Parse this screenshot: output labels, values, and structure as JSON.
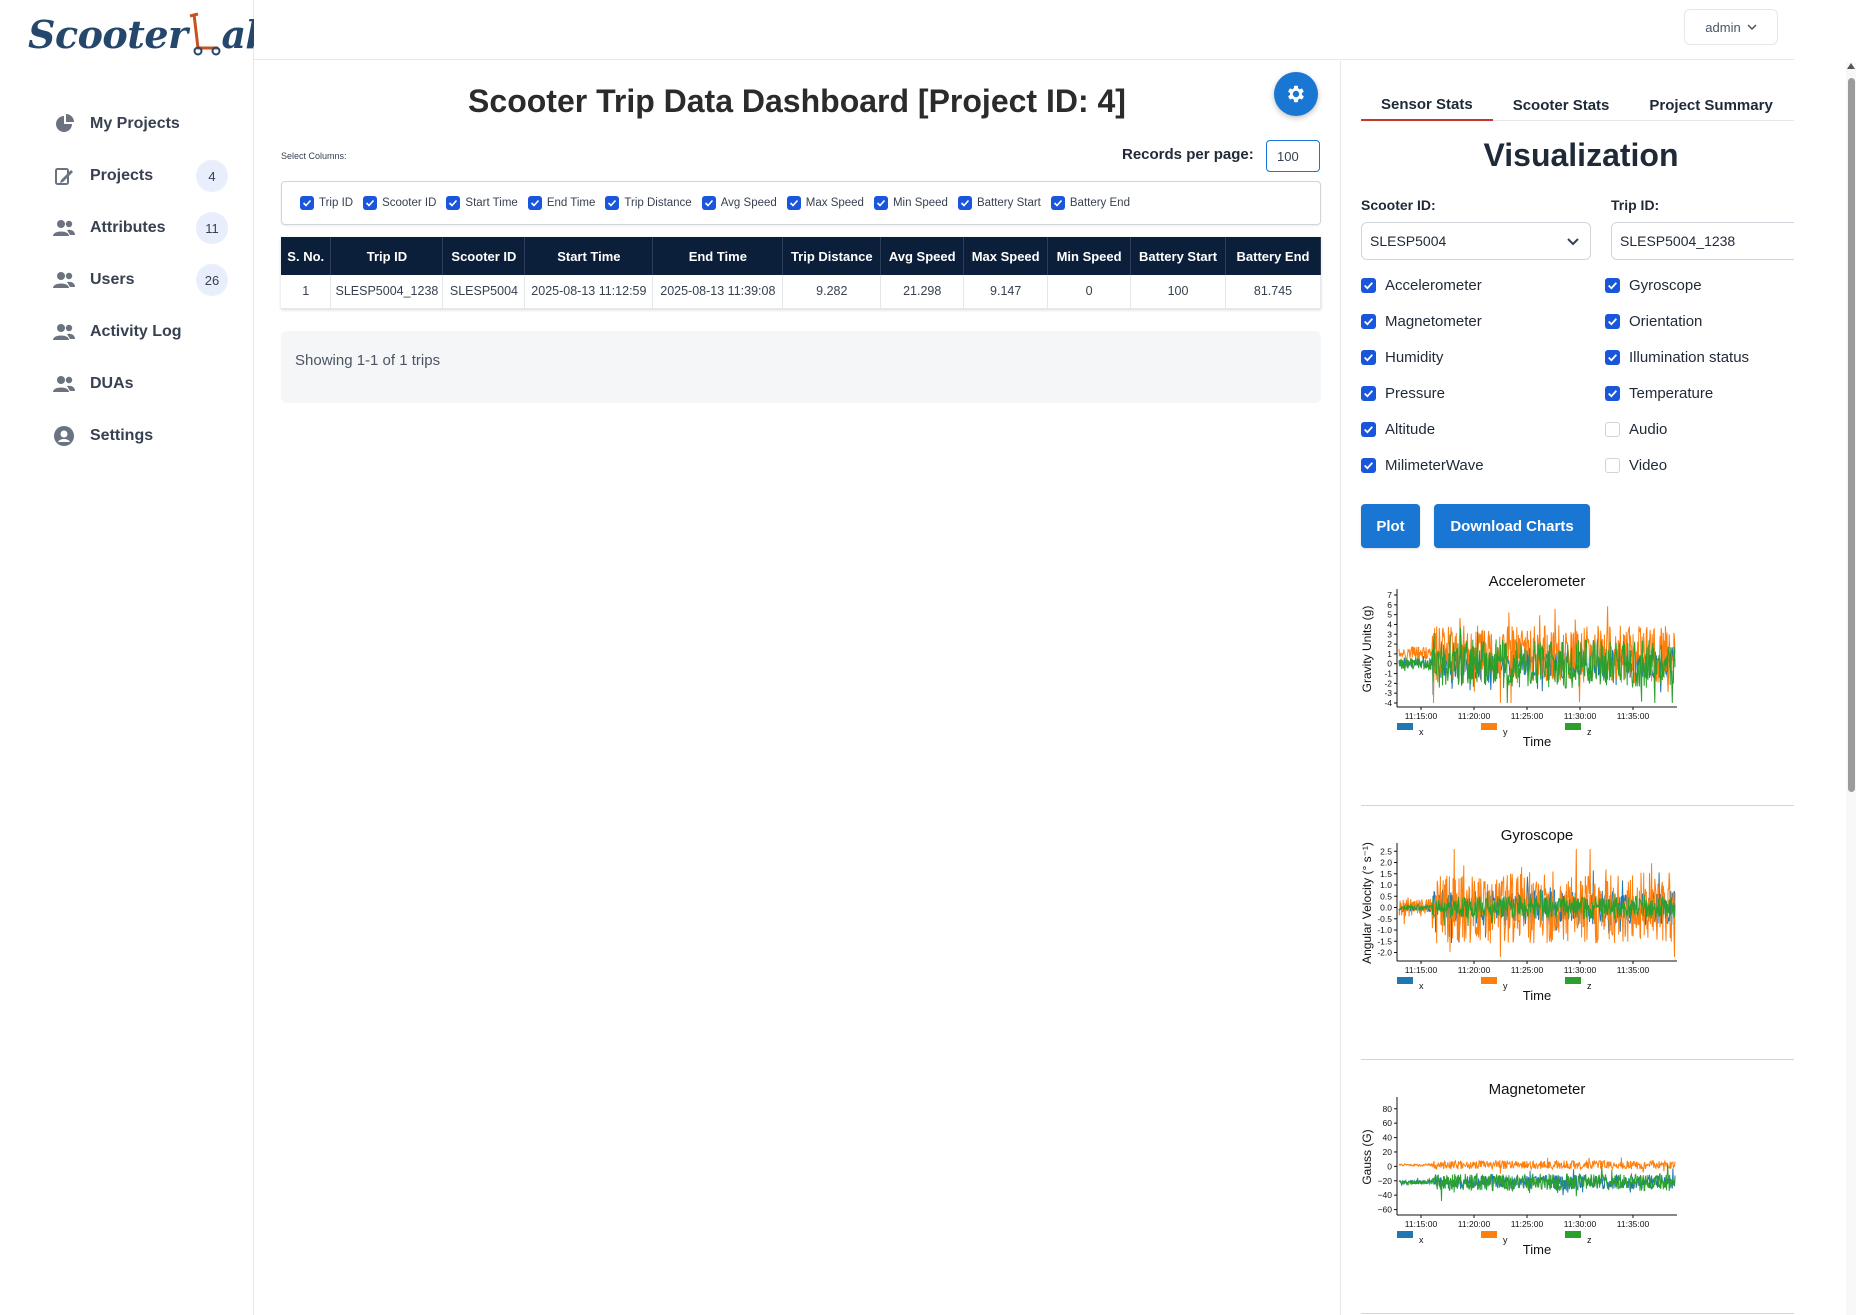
{
  "app": {
    "logo_left": "Scooter",
    "logo_right": "ab"
  },
  "sidebar": {
    "items": [
      {
        "label": "My Projects",
        "icon": "pie-chart-icon",
        "badge": null
      },
      {
        "label": "Projects",
        "icon": "edit-document-icon",
        "badge": "4"
      },
      {
        "label": "Attributes",
        "icon": "users-icon",
        "badge": "11"
      },
      {
        "label": "Users",
        "icon": "users-icon",
        "badge": "26"
      },
      {
        "label": "Activity Log",
        "icon": "users-icon",
        "badge": null
      },
      {
        "label": "DUAs",
        "icon": "users-icon",
        "badge": null
      },
      {
        "label": "Settings",
        "icon": "user-circle-icon",
        "badge": null
      }
    ]
  },
  "topbar": {
    "user_label": "admin"
  },
  "main": {
    "title": "Scooter Trip Data Dashboard [Project ID: 4]",
    "select_columns_label": "Select Columns:",
    "records_per_page_label": "Records per page:",
    "records_per_page_value": "100",
    "columns": [
      "Trip ID",
      "Scooter ID",
      "Start Time",
      "End Time",
      "Trip Distance",
      "Avg Speed",
      "Max Speed",
      "Min Speed",
      "Battery Start",
      "Battery End"
    ],
    "table": {
      "headers": [
        "S. No.",
        "Trip ID",
        "Scooter ID",
        "Start Time",
        "End Time",
        "Trip Distance",
        "Avg Speed",
        "Max Speed",
        "Min Speed",
        "Battery Start",
        "Battery End"
      ],
      "rows": [
        [
          "1",
          "SLESP5004_1238",
          "SLESP5004",
          "2025-08-13 11:12:59",
          "2025-08-13 11:39:08",
          "9.282",
          "21.298",
          "9.147",
          "0",
          "100",
          "81.745"
        ]
      ]
    },
    "showing_text": "Showing 1-1 of 1 trips"
  },
  "panel": {
    "tabs": [
      "Sensor Stats",
      "Scooter Stats",
      "Project Summary"
    ],
    "active_tab": "Sensor Stats",
    "title": "Visualization",
    "scooter_label": "Scooter ID:",
    "scooter_value": "SLESP5004",
    "trip_label": "Trip ID:",
    "trip_value": "SLESP5004_1238",
    "sensors": [
      {
        "label": "Accelerometer",
        "checked": true
      },
      {
        "label": "Gyroscope",
        "checked": true
      },
      {
        "label": "Magnetometer",
        "checked": true
      },
      {
        "label": "Orientation",
        "checked": true
      },
      {
        "label": "Humidity",
        "checked": true
      },
      {
        "label": "Illumination status",
        "checked": true
      },
      {
        "label": "Pressure",
        "checked": true
      },
      {
        "label": "Temperature",
        "checked": true
      },
      {
        "label": "Altitude",
        "checked": true
      },
      {
        "label": "Audio",
        "checked": false
      },
      {
        "label": "MilimeterWave",
        "checked": true
      },
      {
        "label": "Video",
        "checked": false
      }
    ],
    "plot_label": "Plot",
    "download_label": "Download Charts"
  },
  "chart_data": [
    {
      "type": "line",
      "title": "Accelerometer",
      "xlabel": "Time",
      "ylabel": "Gravity Units (g)",
      "x_ticks": [
        "11:15:00",
        "11:20:00",
        "11:25:00",
        "11:30:00",
        "11:35:00"
      ],
      "y_ticks": [
        "7",
        "6",
        "5",
        "4",
        "3",
        "2",
        "1",
        "0",
        "-1",
        "-2",
        "-3",
        "-4"
      ],
      "ylim": [
        -4,
        7
      ],
      "series": [
        {
          "name": "x",
          "color": "#1f77b4",
          "baseline": 0,
          "amplitude": 1.5
        },
        {
          "name": "y",
          "color": "#ff7f0e",
          "baseline": 1,
          "amplitude": 3
        },
        {
          "name": "z",
          "color": "#2ca02c",
          "baseline": 0,
          "amplitude": 2.5
        }
      ]
    },
    {
      "type": "line",
      "title": "Gyroscope",
      "xlabel": "Time",
      "ylabel": "Angular Velocity (° s⁻¹)",
      "x_ticks": [
        "11:15:00",
        "11:20:00",
        "11:25:00",
        "11:30:00",
        "11:35:00"
      ],
      "y_ticks": [
        "2.5",
        "2.0",
        "1.5",
        "1.0",
        "0.5",
        "0.0",
        "-0.5",
        "-1.0",
        "-1.5",
        "-2.0"
      ],
      "ylim": [
        -2.2,
        2.6
      ],
      "series": [
        {
          "name": "x",
          "color": "#1f77b4",
          "baseline": 0,
          "amplitude": 0.8
        },
        {
          "name": "y",
          "color": "#ff7f0e",
          "baseline": 0,
          "amplitude": 1.6
        },
        {
          "name": "z",
          "color": "#2ca02c",
          "baseline": 0,
          "amplitude": 0.5
        }
      ]
    },
    {
      "type": "line",
      "title": "Magnetometer",
      "xlabel": "Time",
      "ylabel": "Gauss (G)",
      "x_ticks": [
        "11:15:00",
        "11:20:00",
        "11:25:00",
        "11:30:00",
        "11:35:00"
      ],
      "y_ticks": [
        "80",
        "60",
        "40",
        "20",
        "0",
        "−20",
        "−40",
        "−60"
      ],
      "ylim": [
        -62,
        88
      ],
      "series": [
        {
          "name": "x",
          "color": "#1f77b4",
          "baseline": -22,
          "amplitude": 10
        },
        {
          "name": "y",
          "color": "#ff7f0e",
          "baseline": 2,
          "amplitude": 6
        },
        {
          "name": "z",
          "color": "#2ca02c",
          "baseline": -22,
          "amplitude": 12
        }
      ]
    }
  ]
}
